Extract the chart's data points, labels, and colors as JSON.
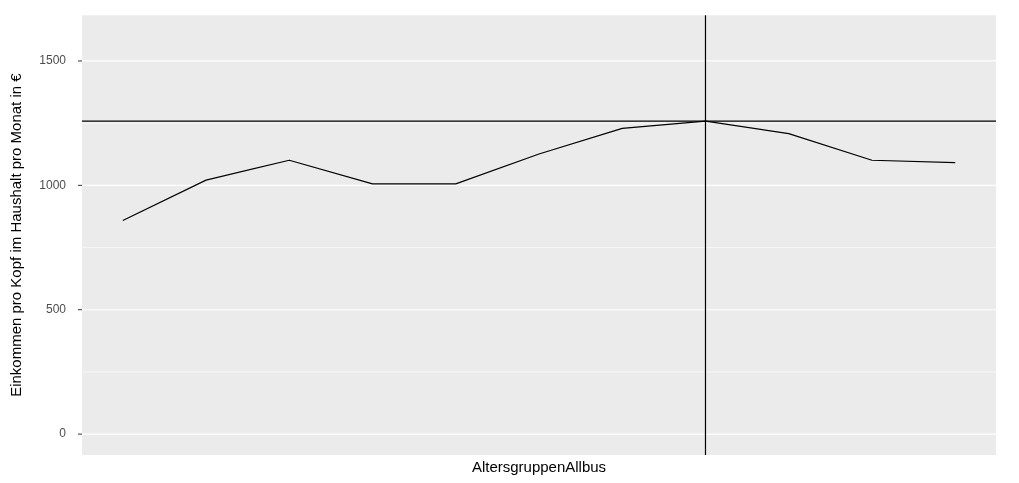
{
  "chart_data": {
    "type": "line",
    "xlabel": "AltersgruppenAllbus",
    "ylabel": "Einkommen pro Kopf im Haushalt pro Monat in €",
    "categories": [
      null,
      null,
      null,
      null,
      null,
      null,
      null,
      null,
      null,
      null,
      null
    ],
    "series": [
      {
        "color": "#000000",
        "values": [
          859,
          1021,
          1101,
          1006,
          1006,
          1126,
          1229,
          1258,
          1208,
          1101,
          1091
        ]
      }
    ],
    "ylim": [
      -84,
      1684
    ],
    "yticks": [
      0,
      {
        "value": 250,
        "label": null
      },
      500,
      {
        "value": 750,
        "label": null
      },
      1000,
      {
        "value": 1250,
        "label": null
      },
      1500
    ],
    "tick_labels": "y",
    "grid": "y",
    "legend": false,
    "marker": "none",
    "line_style": "solid",
    "ref_lines": [
      {
        "axis": "y",
        "value": 1258,
        "color": "#000000"
      }
    ]
  }
}
